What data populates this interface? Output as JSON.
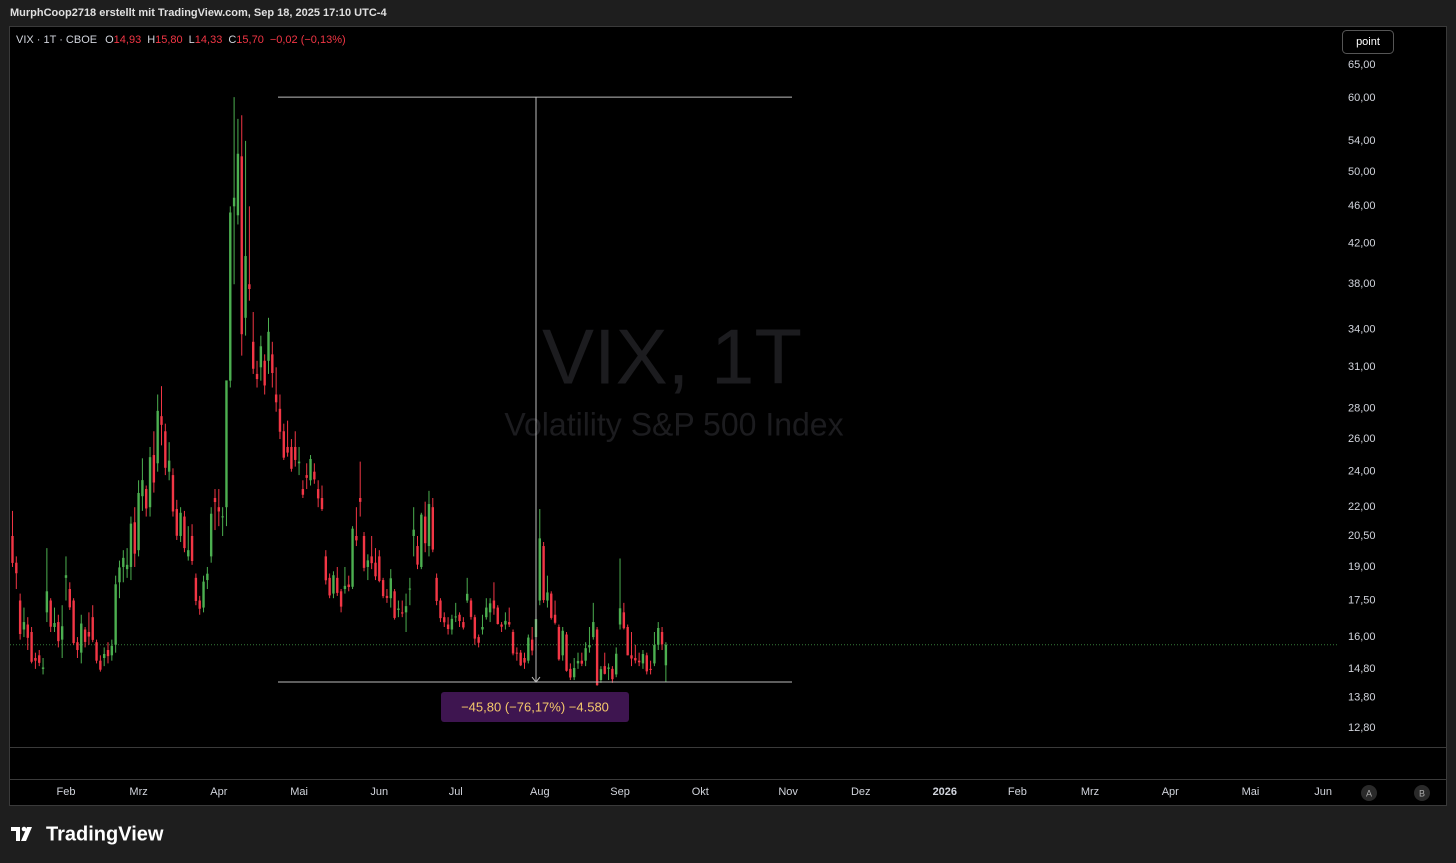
{
  "header": {
    "credit": "MurphCoop2718 erstellt mit TradingView.com, Sep 18, 2025 17:10 UTC-4"
  },
  "legend": {
    "symbol": "VIX · 1T · CBOE",
    "items": [
      {
        "key": "O",
        "value": "14,93"
      },
      {
        "key": "H",
        "value": "15,80"
      },
      {
        "key": "L",
        "value": "14,33"
      },
      {
        "key": "C",
        "value": "15,70"
      }
    ],
    "change": "−0,02 (−0,13%)"
  },
  "watermark": {
    "title": "VIX, 1T",
    "subtitle": "Volatility S&P 500 Index"
  },
  "controls": {
    "point": "point",
    "auto": "A",
    "log": "B"
  },
  "brand": "TradingView",
  "chart_data": {
    "type": "candlestick",
    "log_scale": true,
    "grid": false,
    "up_color": "#4caf50",
    "down_color": "#f23645",
    "ylim": [
      12.22,
      71.4
    ],
    "yticks": [
      {
        "value": 65,
        "label": "65,00"
      },
      {
        "value": 60,
        "label": "60,00"
      },
      {
        "value": 54,
        "label": "54,00"
      },
      {
        "value": 50,
        "label": "50,00"
      },
      {
        "value": 46,
        "label": "46,00"
      },
      {
        "value": 42,
        "label": "42,00"
      },
      {
        "value": 38,
        "label": "38,00"
      },
      {
        "value": 34,
        "label": "34,00"
      },
      {
        "value": 31,
        "label": "31,00"
      },
      {
        "value": 28,
        "label": "28,00"
      },
      {
        "value": 26,
        "label": "26,00"
      },
      {
        "value": 24,
        "label": "24,00"
      },
      {
        "value": 22,
        "label": "22,00"
      },
      {
        "value": 20.5,
        "label": "20,50"
      },
      {
        "value": 19,
        "label": "19,00"
      },
      {
        "value": 17.5,
        "label": "17,50"
      },
      {
        "value": 16,
        "label": "16,00"
      },
      {
        "value": 14.8,
        "label": "14,80"
      },
      {
        "value": 13.8,
        "label": "13,80"
      },
      {
        "value": 12.8,
        "label": "12,80"
      }
    ],
    "xlim": [
      -0.65,
      346.9
    ],
    "xticks": [
      {
        "value": 14,
        "label": "Feb"
      },
      {
        "value": 33,
        "label": "Mrz"
      },
      {
        "value": 54,
        "label": "Apr"
      },
      {
        "value": 75,
        "label": "Mai"
      },
      {
        "value": 96,
        "label": "Jun"
      },
      {
        "value": 116,
        "label": "Jul"
      },
      {
        "value": 138,
        "label": "Aug"
      },
      {
        "value": 159,
        "label": "Sep"
      },
      {
        "value": 180,
        "label": "Okt"
      },
      {
        "value": 203,
        "label": "Nov"
      },
      {
        "value": 222,
        "label": "Dez"
      },
      {
        "value": 244,
        "label": "2026"
      },
      {
        "value": 263,
        "label": "Feb"
      },
      {
        "value": 282,
        "label": "Mrz"
      },
      {
        "value": 303,
        "label": "Apr"
      },
      {
        "value": 324,
        "label": "Mai"
      },
      {
        "value": 343,
        "label": "Jun"
      }
    ],
    "measure_label": "−45,80 (−76,17%) −4.580",
    "ohlc": [
      [
        20.5,
        21.8,
        19.0,
        19.19
      ],
      [
        19.2,
        19.5,
        18.0,
        18.71
      ],
      [
        17.5,
        17.8,
        15.9,
        16.12
      ],
      [
        16.3,
        17.2,
        16.0,
        16.6
      ],
      [
        16.5,
        16.8,
        15.5,
        15.97
      ],
      [
        16.2,
        16.4,
        15.0,
        15.06
      ],
      [
        15.2,
        15.4,
        14.8,
        15.1
      ],
      [
        15.3,
        15.5,
        14.9,
        15.02
      ],
      [
        14.8,
        15.2,
        14.6,
        14.85
      ],
      [
        17.0,
        19.9,
        16.6,
        17.9
      ],
      [
        17.5,
        17.6,
        16.2,
        16.41
      ],
      [
        16.4,
        17.2,
        16.2,
        16.56
      ],
      [
        16.6,
        16.9,
        15.6,
        15.84
      ],
      [
        15.9,
        17.3,
        15.2,
        16.43
      ],
      [
        18.5,
        19.5,
        17.5,
        18.62
      ],
      [
        18.0,
        18.3,
        17.1,
        17.21
      ],
      [
        17.5,
        17.6,
        15.7,
        15.77
      ],
      [
        15.8,
        16.0,
        15.2,
        15.5
      ],
      [
        15.4,
        16.9,
        15.0,
        16.54
      ],
      [
        16.3,
        16.4,
        15.6,
        15.81
      ],
      [
        16.2,
        17.0,
        15.7,
        16.02
      ],
      [
        16.8,
        17.3,
        15.8,
        15.89
      ],
      [
        15.8,
        15.9,
        15.0,
        15.1
      ],
      [
        15.1,
        15.3,
        14.7,
        14.77
      ],
      [
        15.2,
        15.6,
        14.9,
        15.35
      ],
      [
        15.5,
        15.8,
        15.0,
        15.27
      ],
      [
        15.3,
        15.9,
        15.1,
        15.66
      ],
      [
        15.7,
        18.6,
        15.4,
        18.21
      ],
      [
        18.3,
        19.3,
        17.6,
        18.98
      ],
      [
        19.0,
        19.8,
        18.3,
        19.43
      ],
      [
        18.9,
        19.9,
        18.5,
        19.1
      ],
      [
        19.0,
        21.5,
        18.4,
        21.13
      ],
      [
        21.2,
        22.0,
        19.0,
        19.63
      ],
      [
        19.8,
        23.5,
        19.5,
        22.78
      ],
      [
        22.6,
        24.8,
        21.8,
        23.51
      ],
      [
        23.0,
        23.2,
        21.5,
        21.93
      ],
      [
        22.0,
        25.5,
        21.5,
        24.87
      ],
      [
        25.0,
        26.5,
        22.8,
        23.37
      ],
      [
        24.5,
        29.0,
        24.0,
        27.86
      ],
      [
        27.5,
        29.6,
        25.6,
        26.92
      ],
      [
        26.5,
        27.0,
        23.8,
        24.23
      ],
      [
        24.0,
        25.8,
        23.5,
        24.66
      ],
      [
        23.8,
        24.2,
        21.5,
        21.77
      ],
      [
        21.9,
        22.4,
        20.3,
        20.51
      ],
      [
        20.5,
        22.0,
        20.2,
        21.7
      ],
      [
        21.5,
        21.8,
        19.7,
        19.9
      ],
      [
        19.5,
        21.0,
        19.3,
        19.8
      ],
      [
        20.5,
        21.1,
        19.1,
        19.28
      ],
      [
        18.5,
        18.7,
        17.3,
        17.48
      ],
      [
        17.5,
        17.7,
        16.9,
        17.15
      ],
      [
        17.2,
        18.6,
        17.0,
        18.33
      ],
      [
        18.4,
        19.0,
        18.0,
        18.69
      ],
      [
        19.5,
        22.0,
        19.2,
        21.65
      ],
      [
        22.5,
        23.0,
        20.8,
        22.28
      ],
      [
        22.0,
        23.0,
        21.0,
        21.77
      ],
      [
        21.5,
        22.0,
        20.5,
        21.51
      ],
      [
        22.0,
        30.0,
        21.0,
        30.02
      ],
      [
        30.0,
        46.0,
        29.5,
        45.31
      ],
      [
        46.0,
        60.13,
        38.0,
        46.98
      ],
      [
        45.0,
        57.0,
        44.0,
        52.33
      ],
      [
        52.0,
        57.5,
        31.9,
        33.62
      ],
      [
        35.0,
        54.0,
        33.5,
        40.72
      ],
      [
        38.0,
        46.0,
        36.5,
        37.56
      ],
      [
        33.0,
        35.5,
        30.5,
        30.89
      ],
      [
        30.5,
        31.5,
        29.5,
        30.12
      ],
      [
        31.0,
        33.5,
        30.0,
        32.64
      ],
      [
        31.5,
        32.0,
        29.0,
        29.65
      ],
      [
        31.5,
        35.0,
        30.5,
        33.82
      ],
      [
        32.0,
        33.0,
        29.5,
        30.57
      ],
      [
        29.0,
        31.0,
        27.8,
        28.45
      ],
      [
        28.0,
        29.0,
        26.0,
        26.47
      ],
      [
        26.5,
        27.0,
        24.7,
        24.84
      ],
      [
        25.5,
        27.2,
        24.9,
        25.15
      ],
      [
        25.5,
        26.0,
        24.0,
        24.17
      ],
      [
        25.5,
        26.5,
        24.3,
        24.7
      ],
      [
        24.5,
        25.5,
        23.8,
        24.6
      ],
      [
        23.0,
        23.5,
        22.5,
        22.68
      ],
      [
        23.8,
        24.5,
        23.0,
        23.64
      ],
      [
        23.5,
        25.0,
        23.2,
        24.76
      ],
      [
        24.0,
        24.5,
        23.3,
        23.55
      ],
      [
        23.0,
        23.5,
        22.0,
        22.48
      ],
      [
        22.5,
        23.2,
        21.8,
        21.9
      ],
      [
        19.5,
        19.8,
        18.2,
        18.39
      ],
      [
        18.5,
        18.7,
        17.6,
        17.72
      ],
      [
        17.8,
        18.8,
        17.6,
        18.62
      ],
      [
        18.5,
        19.0,
        17.7,
        17.83
      ],
      [
        17.9,
        18.0,
        17.0,
        17.24
      ],
      [
        18.0,
        19.0,
        17.8,
        18.14
      ],
      [
        18.2,
        18.6,
        17.9,
        18.09
      ],
      [
        18.1,
        21.0,
        18.0,
        20.87
      ],
      [
        20.5,
        22.0,
        20.0,
        20.28
      ],
      [
        22.5,
        24.6,
        21.5,
        22.29
      ],
      [
        20.5,
        20.7,
        18.8,
        18.96
      ],
      [
        19.0,
        19.6,
        18.4,
        19.31
      ],
      [
        19.5,
        20.5,
        18.9,
        19.18
      ],
      [
        19.2,
        19.9,
        18.4,
        18.57
      ],
      [
        19.5,
        19.8,
        18.3,
        18.36
      ],
      [
        18.4,
        18.5,
        17.6,
        17.69
      ],
      [
        17.7,
        18.0,
        17.4,
        17.61
      ],
      [
        17.6,
        18.9,
        17.2,
        18.48
      ],
      [
        17.9,
        18.0,
        16.7,
        16.77
      ],
      [
        17.1,
        17.5,
        16.8,
        17.16
      ],
      [
        17.0,
        17.5,
        16.8,
        16.95
      ],
      [
        17.0,
        17.8,
        16.2,
        17.26
      ],
      [
        18.0,
        18.5,
        17.3,
        18.02
      ],
      [
        20.5,
        22.0,
        19.5,
        20.82
      ],
      [
        20.0,
        20.5,
        18.9,
        19.11
      ],
      [
        19.0,
        21.7,
        18.9,
        21.6
      ],
      [
        21.5,
        22.3,
        19.7,
        20.14
      ],
      [
        20.0,
        22.9,
        19.5,
        22.17
      ],
      [
        22.0,
        22.5,
        19.7,
        19.83
      ],
      [
        18.5,
        18.7,
        17.3,
        17.48
      ],
      [
        17.5,
        17.6,
        16.6,
        16.76
      ],
      [
        16.8,
        17.0,
        16.4,
        16.59
      ],
      [
        16.5,
        16.8,
        16.1,
        16.32
      ],
      [
        16.3,
        16.9,
        16.1,
        16.73
      ],
      [
        16.8,
        17.4,
        16.6,
        16.83
      ],
      [
        16.9,
        17.0,
        16.4,
        16.64
      ],
      [
        16.6,
        16.8,
        16.3,
        16.38
      ],
      [
        17.5,
        18.5,
        17.4,
        17.79
      ],
      [
        17.5,
        17.6,
        16.7,
        16.81
      ],
      [
        16.8,
        16.9,
        15.7,
        15.94
      ],
      [
        16.0,
        16.1,
        15.6,
        15.78
      ],
      [
        16.3,
        16.9,
        16.1,
        16.4
      ],
      [
        16.8,
        17.6,
        16.7,
        17.2
      ],
      [
        17.0,
        17.6,
        16.6,
        17.38
      ],
      [
        17.5,
        18.3,
        16.9,
        17.16
      ],
      [
        17.2,
        17.3,
        16.5,
        16.52
      ],
      [
        16.5,
        16.6,
        16.2,
        16.41
      ],
      [
        16.5,
        17.0,
        16.3,
        16.65
      ],
      [
        16.6,
        17.2,
        16.4,
        16.5
      ],
      [
        16.2,
        16.3,
        15.3,
        15.37
      ],
      [
        15.4,
        15.6,
        15.1,
        15.39
      ],
      [
        15.4,
        15.5,
        14.9,
        14.93
      ],
      [
        15.2,
        15.4,
        14.8,
        15.03
      ],
      [
        15.1,
        16.1,
        15.0,
        15.98
      ],
      [
        15.9,
        16.4,
        15.3,
        15.48
      ],
      [
        16.0,
        17.5,
        15.5,
        16.72
      ],
      [
        17.5,
        21.9,
        17.3,
        20.38
      ],
      [
        20.0,
        20.2,
        17.4,
        17.52
      ],
      [
        17.5,
        18.6,
        17.2,
        17.85
      ],
      [
        17.8,
        17.9,
        16.7,
        16.77
      ],
      [
        16.9,
        17.5,
        16.5,
        16.57
      ],
      [
        16.4,
        16.5,
        15.1,
        15.15
      ],
      [
        15.3,
        16.4,
        15.1,
        16.25
      ],
      [
        16.1,
        16.2,
        14.7,
        14.73
      ],
      [
        14.8,
        15.0,
        14.4,
        14.49
      ],
      [
        14.5,
        15.2,
        14.4,
        14.83
      ],
      [
        15.0,
        15.4,
        14.8,
        15.09
      ],
      [
        15.1,
        15.4,
        14.9,
        14.99
      ],
      [
        15.1,
        15.8,
        14.9,
        15.57
      ],
      [
        15.6,
        16.4,
        15.4,
        15.69
      ],
      [
        16.0,
        17.4,
        15.9,
        16.6
      ],
      [
        16.3,
        16.4,
        14.2,
        14.22
      ],
      [
        14.4,
        14.9,
        14.3,
        14.79
      ],
      [
        14.9,
        15.4,
        14.6,
        14.62
      ],
      [
        14.8,
        15.0,
        14.4,
        14.85
      ],
      [
        14.8,
        14.9,
        14.3,
        14.43
      ],
      [
        14.6,
        15.6,
        14.5,
        15.36
      ],
      [
        16.5,
        19.4,
        16.3,
        17.17
      ],
      [
        17.0,
        17.4,
        16.3,
        16.35
      ],
      [
        16.4,
        16.5,
        15.3,
        15.3
      ],
      [
        15.3,
        16.2,
        14.9,
        15.18
      ],
      [
        15.2,
        15.7,
        15.0,
        15.11
      ],
      [
        15.1,
        15.4,
        14.9,
        15.04
      ],
      [
        15.0,
        15.5,
        14.8,
        15.35
      ],
      [
        15.3,
        15.4,
        14.6,
        14.71
      ],
      [
        14.8,
        15.1,
        14.6,
        14.76
      ],
      [
        15.0,
        16.2,
        14.9,
        15.69
      ],
      [
        15.7,
        16.6,
        15.5,
        16.36
      ],
      [
        16.2,
        16.4,
        15.5,
        15.72
      ],
      [
        14.93,
        15.8,
        14.33,
        15.7
      ]
    ]
  }
}
